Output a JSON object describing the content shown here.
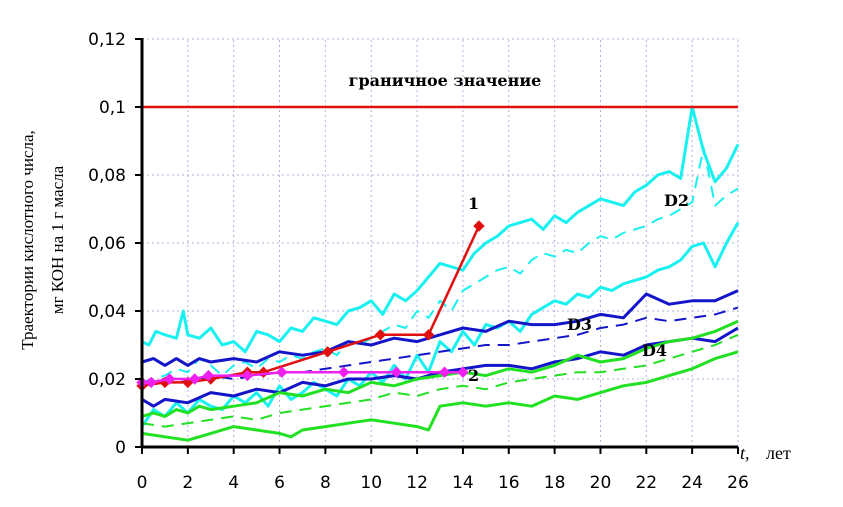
{
  "chart_data": {
    "type": "line",
    "title": "",
    "ylabel_line1": "Траектории кислотного числа,",
    "ylabel_line2": "мг КОН на 1 г масла",
    "xlabel_t": "t,",
    "xlabel_unit": "лет",
    "xlim": [
      0,
      26
    ],
    "ylim": [
      0,
      0.12
    ],
    "x_ticks": [
      0,
      2,
      4,
      6,
      8,
      10,
      12,
      14,
      16,
      18,
      20,
      22,
      24,
      26
    ],
    "y_ticks": [
      0,
      0.02,
      0.04,
      0.06,
      0.08,
      0.1,
      0.12
    ],
    "x_tick_labels": [
      "0",
      "2",
      "4",
      "6",
      "8",
      "10",
      "12",
      "14",
      "16",
      "18",
      "20",
      "22",
      "24",
      "26"
    ],
    "y_tick_labels": [
      "0",
      "0,02",
      "0,04",
      "0,06",
      "0,08",
      "0,1",
      "0,12"
    ],
    "grid": true,
    "colors": {
      "limit": "#e01010",
      "cyan": "#19f0f0",
      "blue": "#1414c8",
      "green": "#22e022",
      "series1": "#e01010",
      "series2": "#f020f0",
      "grid": "#b0b0e0"
    },
    "threshold": {
      "label": "граничное значение",
      "value": 0.1
    },
    "annotations": {
      "series1": "1",
      "series2": "2",
      "D2": "D2",
      "D3": "D3",
      "D4": "D4"
    },
    "series": [
      {
        "group": "cyan",
        "style": "solid",
        "x": [
          0,
          0.3,
          0.6,
          1,
          1.5,
          1.8,
          2,
          2.5,
          3,
          3.5,
          4,
          4.5,
          5,
          5.5,
          6,
          6.5,
          7,
          7.5,
          8,
          8.5,
          9,
          9.5,
          10,
          10.5,
          11,
          11.5,
          12,
          12.5,
          13,
          13.5,
          14,
          14.5,
          15,
          15.5,
          16,
          16.5,
          17,
          17.5,
          18,
          18.5,
          19,
          19.5,
          20,
          20.5,
          21,
          21.5,
          22,
          22.5,
          23,
          23.5,
          24,
          24.5,
          25,
          25.5,
          26
        ],
        "y": [
          0.031,
          0.03,
          0.034,
          0.033,
          0.032,
          0.04,
          0.033,
          0.032,
          0.035,
          0.03,
          0.031,
          0.028,
          0.034,
          0.033,
          0.031,
          0.035,
          0.034,
          0.038,
          0.037,
          0.036,
          0.04,
          0.041,
          0.043,
          0.039,
          0.045,
          0.043,
          0.046,
          0.05,
          0.054,
          0.053,
          0.052,
          0.057,
          0.06,
          0.062,
          0.065,
          0.066,
          0.067,
          0.064,
          0.068,
          0.066,
          0.069,
          0.071,
          0.073,
          0.072,
          0.071,
          0.075,
          0.077,
          0.08,
          0.081,
          0.079,
          0.1,
          0.087,
          0.078,
          0.082,
          0.089
        ]
      },
      {
        "group": "cyan",
        "style": "dashed",
        "x": [
          0,
          0.5,
          1,
          1.5,
          2,
          2.5,
          3,
          3.5,
          4,
          4.5,
          5,
          5.5,
          6,
          6.5,
          7,
          7.5,
          8,
          8.5,
          9,
          9.5,
          10,
          10.5,
          11,
          11.5,
          12,
          12.5,
          13,
          13.5,
          14,
          14.5,
          15,
          15.5,
          16,
          16.5,
          17,
          17.5,
          18,
          18.5,
          19,
          19.5,
          20,
          20.5,
          21,
          21.5,
          22,
          22.5,
          23,
          23.5,
          24,
          24.5,
          25,
          25.5,
          26
        ],
        "y": [
          0.019,
          0.02,
          0.021,
          0.023,
          0.022,
          0.026,
          0.024,
          0.021,
          0.024,
          0.025,
          0.023,
          0.026,
          0.025,
          0.027,
          0.026,
          0.028,
          0.029,
          0.027,
          0.031,
          0.03,
          0.032,
          0.034,
          0.036,
          0.035,
          0.04,
          0.038,
          0.043,
          0.04,
          0.046,
          0.048,
          0.05,
          0.052,
          0.053,
          0.051,
          0.055,
          0.057,
          0.056,
          0.058,
          0.057,
          0.06,
          0.062,
          0.061,
          0.063,
          0.064,
          0.065,
          0.067,
          0.068,
          0.07,
          0.072,
          0.088,
          0.071,
          0.074,
          0.076
        ]
      },
      {
        "group": "cyan",
        "style": "solid",
        "x": [
          0,
          0.5,
          1,
          1.5,
          2,
          2.5,
          3,
          3.5,
          4,
          4.5,
          5,
          5.5,
          6,
          6.5,
          7,
          7.5,
          8,
          8.5,
          9,
          9.5,
          10,
          10.5,
          11,
          11.5,
          12,
          12.5,
          13,
          13.5,
          14,
          14.5,
          15,
          15.5,
          16,
          16.5,
          17,
          17.5,
          18,
          18.5,
          19,
          19.5,
          20,
          20.5,
          21,
          21.5,
          22,
          22.5,
          23,
          23.5,
          24,
          24.5,
          25,
          25.5,
          26
        ],
        "y": [
          0.006,
          0.011,
          0.009,
          0.013,
          0.01,
          0.014,
          0.012,
          0.011,
          0.015,
          0.013,
          0.016,
          0.012,
          0.018,
          0.014,
          0.016,
          0.019,
          0.017,
          0.015,
          0.02,
          0.018,
          0.022,
          0.019,
          0.024,
          0.02,
          0.027,
          0.022,
          0.031,
          0.028,
          0.034,
          0.03,
          0.036,
          0.035,
          0.037,
          0.034,
          0.039,
          0.041,
          0.043,
          0.042,
          0.045,
          0.044,
          0.047,
          0.046,
          0.048,
          0.049,
          0.05,
          0.052,
          0.053,
          0.055,
          0.059,
          0.06,
          0.053,
          0.06,
          0.066
        ]
      },
      {
        "group": "blue",
        "style": "solid",
        "x": [
          0,
          0.5,
          1,
          1.5,
          2,
          2.5,
          3,
          4,
          5,
          6,
          7,
          8,
          9,
          10,
          11,
          12,
          13,
          14,
          15,
          16,
          17,
          18,
          19,
          20,
          21,
          22,
          23,
          24,
          25,
          26
        ],
        "y": [
          0.025,
          0.026,
          0.024,
          0.026,
          0.024,
          0.026,
          0.025,
          0.026,
          0.025,
          0.028,
          0.027,
          0.028,
          0.031,
          0.03,
          0.032,
          0.031,
          0.033,
          0.035,
          0.034,
          0.037,
          0.036,
          0.036,
          0.037,
          0.039,
          0.038,
          0.045,
          0.042,
          0.043,
          0.043,
          0.046
        ]
      },
      {
        "group": "blue",
        "style": "dashed",
        "x": [
          0,
          1,
          2,
          3,
          4,
          5,
          6,
          7,
          8,
          9,
          10,
          11,
          12,
          13,
          14,
          15,
          16,
          17,
          18,
          19,
          20,
          21,
          22,
          23,
          24,
          25,
          26
        ],
        "y": [
          0.019,
          0.02,
          0.019,
          0.021,
          0.02,
          0.021,
          0.022,
          0.022,
          0.023,
          0.024,
          0.025,
          0.026,
          0.027,
          0.028,
          0.029,
          0.03,
          0.03,
          0.031,
          0.032,
          0.033,
          0.035,
          0.036,
          0.038,
          0.037,
          0.038,
          0.039,
          0.041
        ]
      },
      {
        "group": "blue",
        "style": "solid",
        "x": [
          0,
          0.5,
          1,
          2,
          3,
          4,
          5,
          6,
          7,
          8,
          9,
          10,
          11,
          12,
          13,
          14,
          15,
          16,
          17,
          18,
          19,
          20,
          21,
          22,
          23,
          24,
          25,
          26
        ],
        "y": [
          0.014,
          0.012,
          0.014,
          0.013,
          0.016,
          0.015,
          0.017,
          0.016,
          0.019,
          0.018,
          0.02,
          0.02,
          0.021,
          0.02,
          0.022,
          0.023,
          0.024,
          0.024,
          0.023,
          0.025,
          0.026,
          0.028,
          0.027,
          0.03,
          0.031,
          0.032,
          0.031,
          0.035
        ]
      },
      {
        "group": "green",
        "style": "solid",
        "x": [
          0,
          0.5,
          1,
          1.5,
          2,
          2.5,
          3,
          4,
          5,
          6,
          7,
          8,
          9,
          10,
          11,
          12,
          13,
          14,
          15,
          16,
          17,
          18,
          19,
          20,
          21,
          22,
          23,
          24,
          25,
          26
        ],
        "y": [
          0.009,
          0.01,
          0.009,
          0.011,
          0.01,
          0.012,
          0.011,
          0.012,
          0.013,
          0.016,
          0.015,
          0.017,
          0.016,
          0.019,
          0.018,
          0.02,
          0.021,
          0.022,
          0.021,
          0.023,
          0.022,
          0.024,
          0.027,
          0.025,
          0.026,
          0.029,
          0.031,
          0.032,
          0.034,
          0.037
        ]
      },
      {
        "group": "green",
        "style": "dashed",
        "x": [
          0,
          1,
          2,
          3,
          4,
          5,
          6,
          7,
          8,
          9,
          10,
          11,
          12,
          13,
          14,
          15,
          16,
          17,
          18,
          19,
          20,
          21,
          22,
          23,
          24,
          25,
          26
        ],
        "y": [
          0.007,
          0.006,
          0.007,
          0.008,
          0.009,
          0.008,
          0.01,
          0.011,
          0.012,
          0.013,
          0.014,
          0.016,
          0.015,
          0.017,
          0.018,
          0.017,
          0.019,
          0.02,
          0.021,
          0.022,
          0.022,
          0.023,
          0.024,
          0.026,
          0.028,
          0.03,
          0.033
        ]
      },
      {
        "group": "green",
        "style": "solid",
        "x": [
          0,
          1,
          2,
          3,
          4,
          5,
          6,
          6.5,
          7,
          8,
          9,
          10,
          11,
          12,
          12.5,
          13,
          14,
          15,
          16,
          17,
          18,
          19,
          20,
          21,
          22,
          23,
          24,
          25,
          26
        ],
        "y": [
          0.004,
          0.003,
          0.002,
          0.004,
          0.006,
          0.005,
          0.004,
          0.003,
          0.005,
          0.006,
          0.007,
          0.008,
          0.007,
          0.006,
          0.005,
          0.012,
          0.013,
          0.012,
          0.013,
          0.012,
          0.015,
          0.014,
          0.016,
          0.018,
          0.019,
          0.021,
          0.023,
          0.026,
          0.028
        ]
      },
      {
        "group": "series1",
        "name": "1",
        "style": "marker-diamond",
        "x": [
          0,
          1,
          2,
          3,
          4.6,
          5.3,
          8.1,
          10.4,
          12.5,
          14.7
        ],
        "y": [
          0.018,
          0.019,
          0.019,
          0.02,
          0.022,
          0.022,
          0.028,
          0.033,
          0.033,
          0.065
        ]
      },
      {
        "group": "series2",
        "name": "2",
        "style": "marker-diamond",
        "x": [
          0,
          0.4,
          1.2,
          2.3,
          2.9,
          4.6,
          6.1,
          8.8,
          11.1,
          13.2,
          14.0
        ],
        "y": [
          0.019,
          0.019,
          0.02,
          0.02,
          0.021,
          0.021,
          0.022,
          0.022,
          0.022,
          0.022,
          0.022
        ]
      }
    ]
  }
}
